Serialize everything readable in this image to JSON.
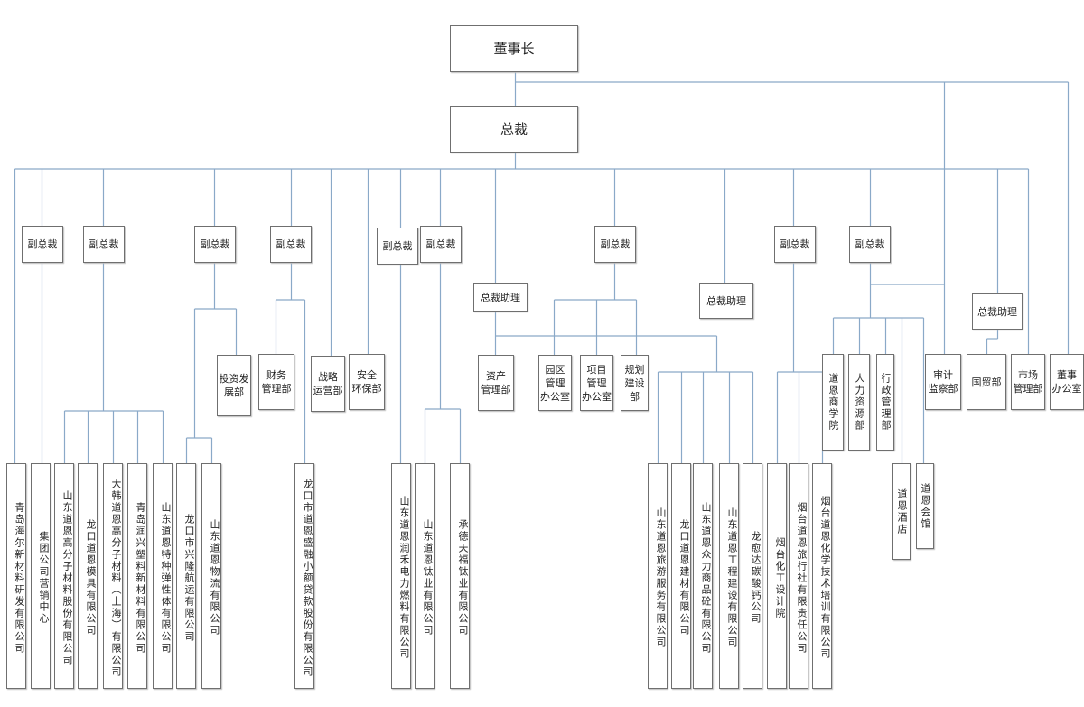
{
  "title": "",
  "line_color": "#8aa9c8",
  "nodes": [
    "董事长",
    "总裁",
    "副总裁",
    "副总裁",
    "副总裁",
    "副总裁",
    "副总裁",
    "副总裁",
    "副总裁",
    "副总裁",
    "副总裁",
    "总裁助理",
    "总裁助理",
    "总裁助理",
    "投资发\n展部",
    "财务\n管理部",
    "战略\n运营部",
    "安全\n环保部",
    "资产\n管理部",
    "园区\n管理\n办公室",
    "项目\n管理\n办公室",
    "规划\n建设\n部",
    "审计\n监察部",
    "国贸部",
    "市场\n管理部",
    "董事\n办公室",
    "道恩商学院",
    "人力资源部",
    "行政管理部",
    "道恩酒店",
    "道恩会馆",
    "青岛海尔新材料研发有限公司",
    "集团公司营销中心",
    "山东道恩高分子材料股份有限公司",
    "龙口道恩模具有限公司",
    "大韩道恩高分子材料（上海）有限公司",
    "青岛润兴塑料新材料有限公司",
    "山东道恩特种弹性体有限公司",
    "龙口市兴隆航运有限公司",
    "山东道恩物流有限公司",
    "龙口市道恩盛融小额贷款股份有限公司",
    "山东道恩润禾电力燃料有限公司",
    "山东道恩钛业有限公司",
    "承德天福钛业有限公司",
    "山东道恩旅游服务有限公司",
    "龙口道恩建材有限公司",
    "山东道恩众力商品砼有限公司",
    "山东道恩工程建设有限公司",
    "龙愈达碳酸钙公司",
    "烟台化工设计院",
    "烟台道恩旅行社有限责任公司",
    "烟台道恩化学技术培训有限公司"
  ]
}
